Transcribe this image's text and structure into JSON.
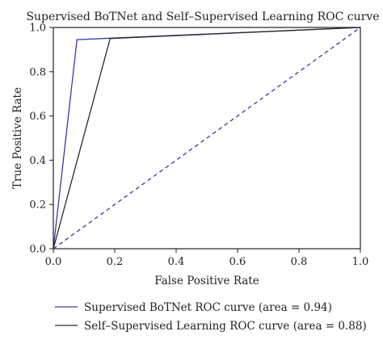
{
  "chart_data": {
    "type": "line",
    "title": "Supervised BoTNet and Self–Supervised Learning ROC curve",
    "xlabel": "False Positive Rate",
    "ylabel": "True Positive Rate",
    "xlim": [
      0.0,
      1.0
    ],
    "ylim": [
      0.0,
      1.0
    ],
    "xticks": [
      "0.0",
      "0.2",
      "0.4",
      "0.6",
      "0.8",
      "1.0"
    ],
    "yticks": [
      "0.0",
      "0.2",
      "0.4",
      "0.6",
      "0.8",
      "1.0"
    ],
    "grid": false,
    "legend_position": "bottom",
    "series": [
      {
        "name": "Supervised BoTNet ROC curve (area = 0.94)",
        "color": "#3a3a9e",
        "style": "solid",
        "x": [
          0.0,
          0.077,
          1.0
        ],
        "y": [
          0.0,
          0.945,
          1.0
        ]
      },
      {
        "name": "Self–Supervised Learning ROC curve (area = 0.88)",
        "color": "#2a2a2a",
        "style": "solid",
        "x": [
          0.0,
          0.185,
          1.0
        ],
        "y": [
          0.0,
          0.95,
          1.0
        ]
      },
      {
        "color": "#3a3a9e",
        "style": "dashed",
        "x": [
          0.0,
          1.0
        ],
        "y": [
          0.0,
          1.0
        ]
      }
    ]
  }
}
